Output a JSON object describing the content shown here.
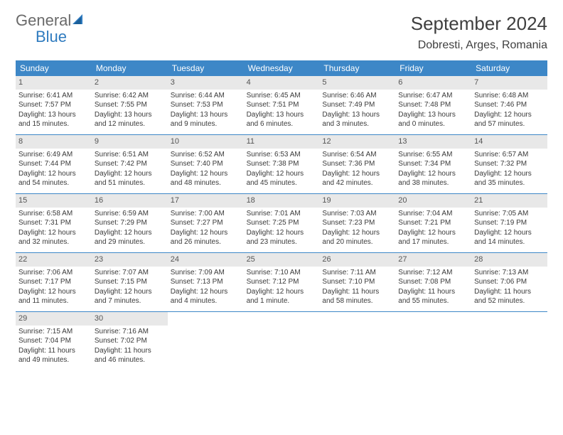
{
  "brand": {
    "name1": "General",
    "name2": "Blue"
  },
  "title": "September 2024",
  "location": "Dobresti, Arges, Romania",
  "colors": {
    "header_bg": "#3d87c7",
    "header_text": "#ffffff",
    "daynum_bg": "#e8e8e8",
    "border": "#3d87c7",
    "text": "#3a3a3a",
    "brand_gray": "#6a6a6a",
    "brand_blue": "#2f7bbf"
  },
  "day_labels": [
    "Sunday",
    "Monday",
    "Tuesday",
    "Wednesday",
    "Thursday",
    "Friday",
    "Saturday"
  ],
  "weeks": [
    [
      {
        "n": "1",
        "sr": "6:41 AM",
        "ss": "7:57 PM",
        "dl": "13 hours and 15 minutes."
      },
      {
        "n": "2",
        "sr": "6:42 AM",
        "ss": "7:55 PM",
        "dl": "13 hours and 12 minutes."
      },
      {
        "n": "3",
        "sr": "6:44 AM",
        "ss": "7:53 PM",
        "dl": "13 hours and 9 minutes."
      },
      {
        "n": "4",
        "sr": "6:45 AM",
        "ss": "7:51 PM",
        "dl": "13 hours and 6 minutes."
      },
      {
        "n": "5",
        "sr": "6:46 AM",
        "ss": "7:49 PM",
        "dl": "13 hours and 3 minutes."
      },
      {
        "n": "6",
        "sr": "6:47 AM",
        "ss": "7:48 PM",
        "dl": "13 hours and 0 minutes."
      },
      {
        "n": "7",
        "sr": "6:48 AM",
        "ss": "7:46 PM",
        "dl": "12 hours and 57 minutes."
      }
    ],
    [
      {
        "n": "8",
        "sr": "6:49 AM",
        "ss": "7:44 PM",
        "dl": "12 hours and 54 minutes."
      },
      {
        "n": "9",
        "sr": "6:51 AM",
        "ss": "7:42 PM",
        "dl": "12 hours and 51 minutes."
      },
      {
        "n": "10",
        "sr": "6:52 AM",
        "ss": "7:40 PM",
        "dl": "12 hours and 48 minutes."
      },
      {
        "n": "11",
        "sr": "6:53 AM",
        "ss": "7:38 PM",
        "dl": "12 hours and 45 minutes."
      },
      {
        "n": "12",
        "sr": "6:54 AM",
        "ss": "7:36 PM",
        "dl": "12 hours and 42 minutes."
      },
      {
        "n": "13",
        "sr": "6:55 AM",
        "ss": "7:34 PM",
        "dl": "12 hours and 38 minutes."
      },
      {
        "n": "14",
        "sr": "6:57 AM",
        "ss": "7:32 PM",
        "dl": "12 hours and 35 minutes."
      }
    ],
    [
      {
        "n": "15",
        "sr": "6:58 AM",
        "ss": "7:31 PM",
        "dl": "12 hours and 32 minutes."
      },
      {
        "n": "16",
        "sr": "6:59 AM",
        "ss": "7:29 PM",
        "dl": "12 hours and 29 minutes."
      },
      {
        "n": "17",
        "sr": "7:00 AM",
        "ss": "7:27 PM",
        "dl": "12 hours and 26 minutes."
      },
      {
        "n": "18",
        "sr": "7:01 AM",
        "ss": "7:25 PM",
        "dl": "12 hours and 23 minutes."
      },
      {
        "n": "19",
        "sr": "7:03 AM",
        "ss": "7:23 PM",
        "dl": "12 hours and 20 minutes."
      },
      {
        "n": "20",
        "sr": "7:04 AM",
        "ss": "7:21 PM",
        "dl": "12 hours and 17 minutes."
      },
      {
        "n": "21",
        "sr": "7:05 AM",
        "ss": "7:19 PM",
        "dl": "12 hours and 14 minutes."
      }
    ],
    [
      {
        "n": "22",
        "sr": "7:06 AM",
        "ss": "7:17 PM",
        "dl": "12 hours and 11 minutes."
      },
      {
        "n": "23",
        "sr": "7:07 AM",
        "ss": "7:15 PM",
        "dl": "12 hours and 7 minutes."
      },
      {
        "n": "24",
        "sr": "7:09 AM",
        "ss": "7:13 PM",
        "dl": "12 hours and 4 minutes."
      },
      {
        "n": "25",
        "sr": "7:10 AM",
        "ss": "7:12 PM",
        "dl": "12 hours and 1 minute."
      },
      {
        "n": "26",
        "sr": "7:11 AM",
        "ss": "7:10 PM",
        "dl": "11 hours and 58 minutes."
      },
      {
        "n": "27",
        "sr": "7:12 AM",
        "ss": "7:08 PM",
        "dl": "11 hours and 55 minutes."
      },
      {
        "n": "28",
        "sr": "7:13 AM",
        "ss": "7:06 PM",
        "dl": "11 hours and 52 minutes."
      }
    ],
    [
      {
        "n": "29",
        "sr": "7:15 AM",
        "ss": "7:04 PM",
        "dl": "11 hours and 49 minutes."
      },
      {
        "n": "30",
        "sr": "7:16 AM",
        "ss": "7:02 PM",
        "dl": "11 hours and 46 minutes."
      },
      null,
      null,
      null,
      null,
      null
    ]
  ],
  "labels": {
    "sunrise": "Sunrise:",
    "sunset": "Sunset:",
    "daylight": "Daylight:"
  }
}
